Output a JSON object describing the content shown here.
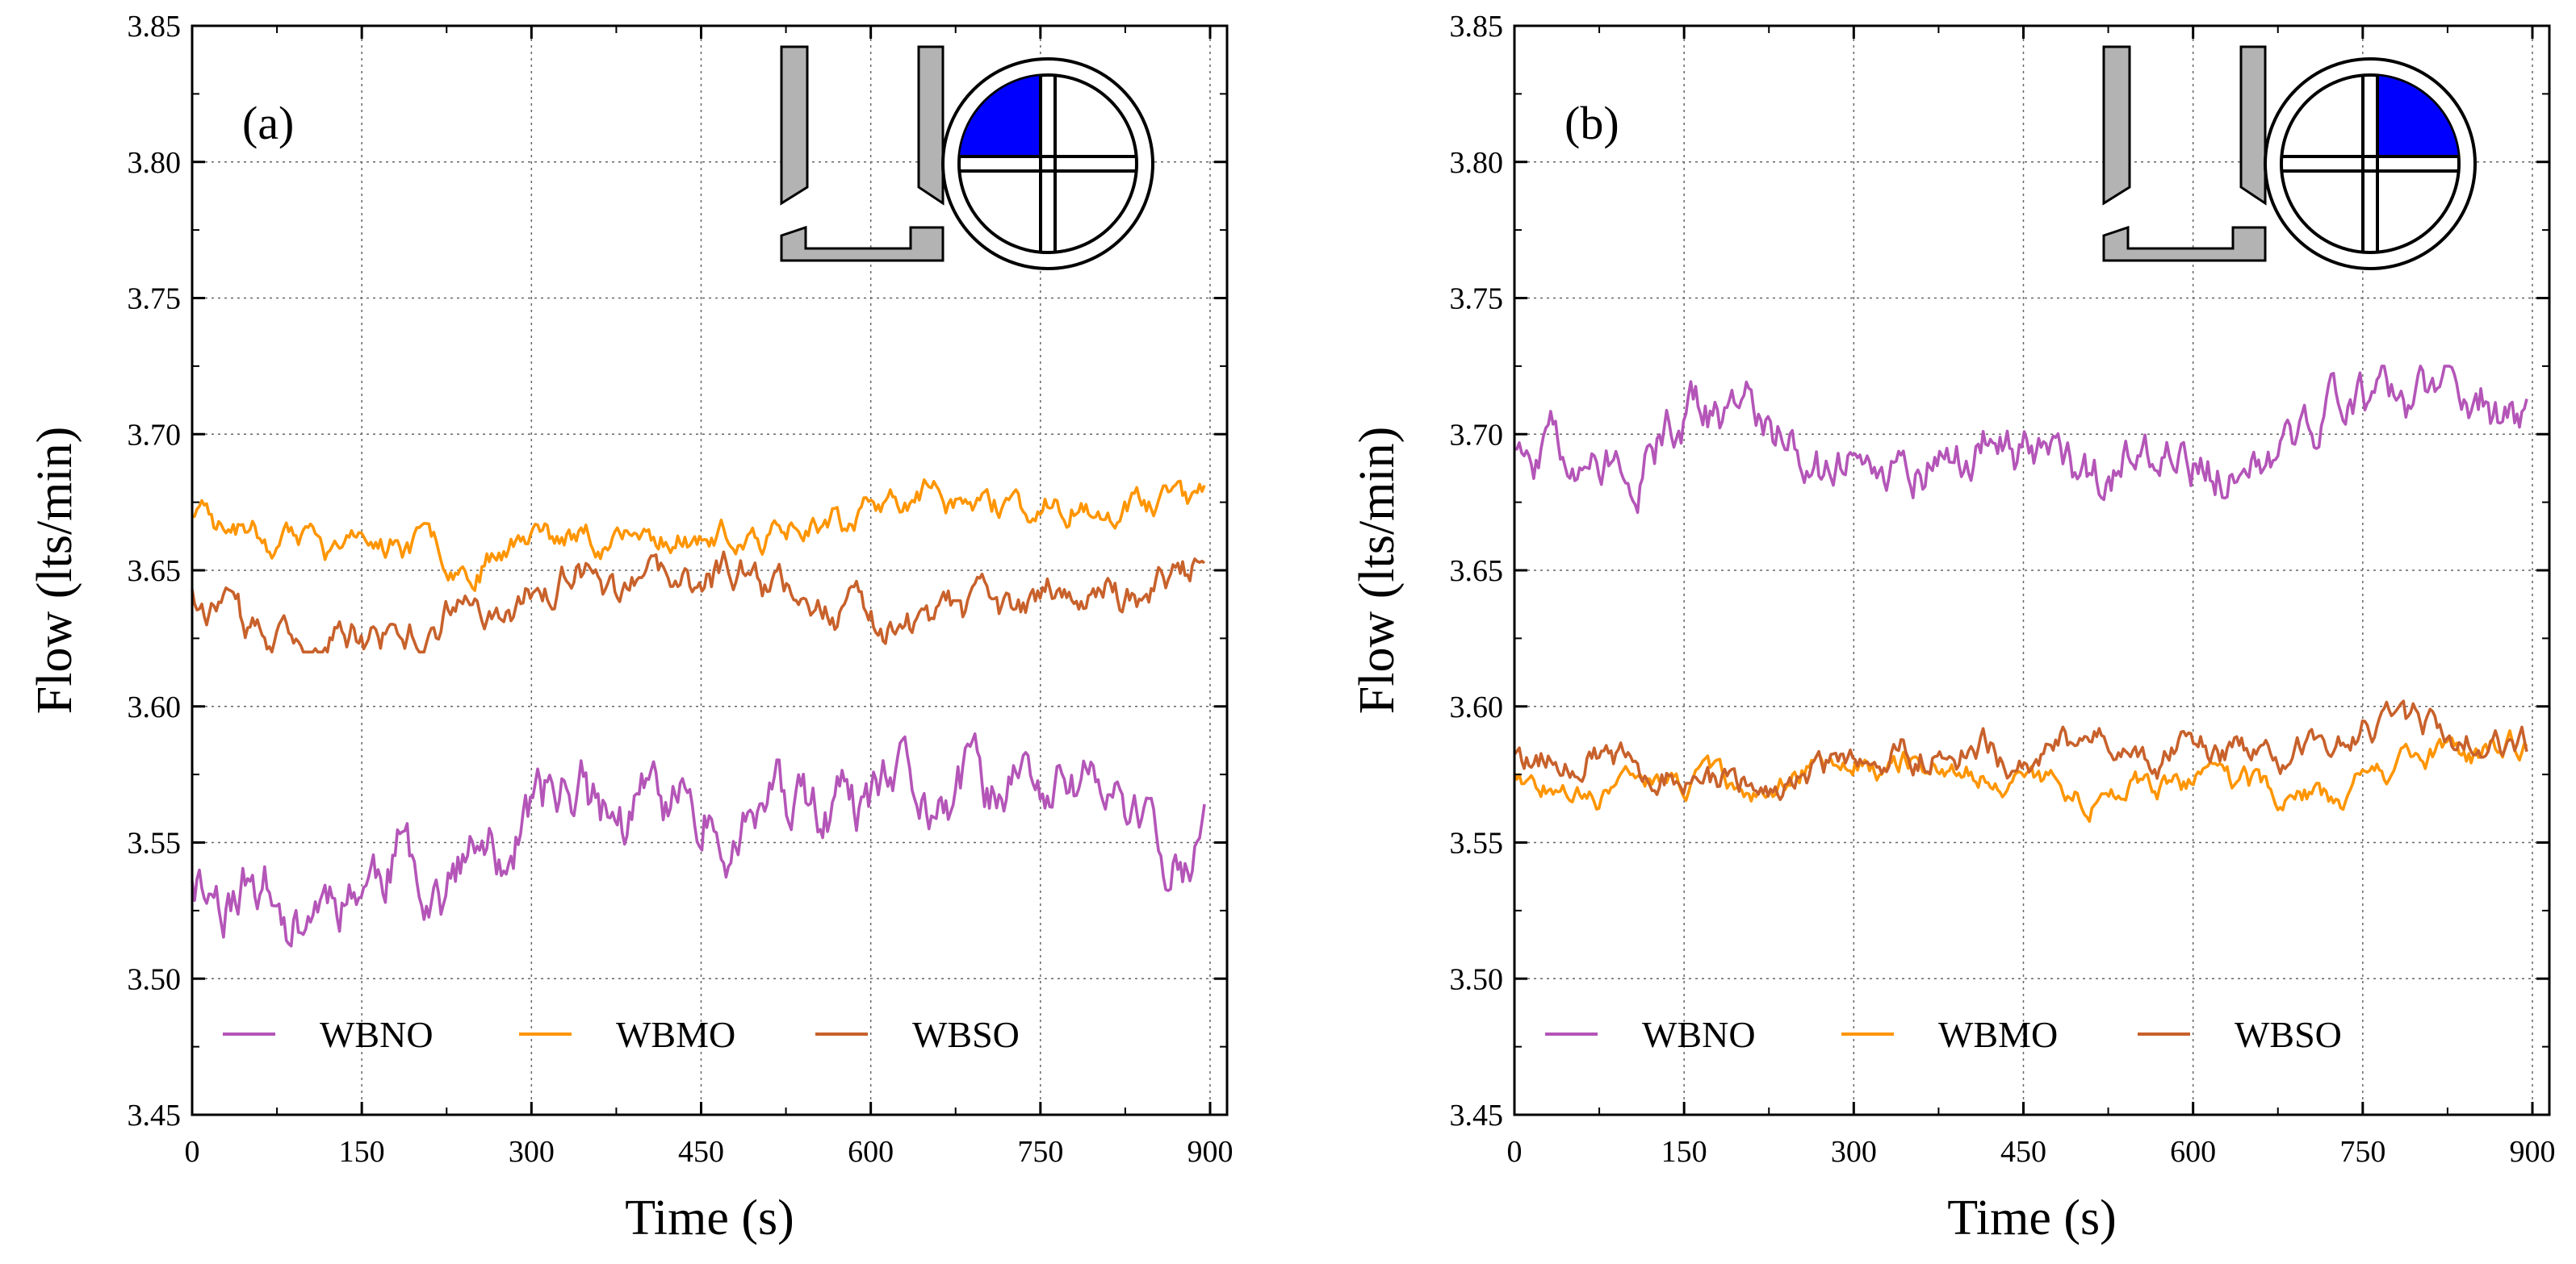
{
  "chart_data": [
    {
      "type": "line",
      "panel_label": "(a)",
      "xlabel": "Time (s)",
      "ylabel": "Flow (lts/min)",
      "xlim": [
        0,
        915
      ],
      "ylim": [
        3.45,
        3.85
      ],
      "x_ticks": [
        "0",
        "150",
        "300",
        "450",
        "600",
        "750",
        "900"
      ],
      "y_ticks": [
        "3.45",
        "3.50",
        "3.55",
        "3.60",
        "3.65",
        "3.70",
        "3.75",
        "3.80",
        "3.85"
      ],
      "grid": true,
      "legend_position": "bottom",
      "inset": {
        "highlighted_quadrant": "top-left",
        "highlight_color": "#0000ff"
      },
      "series": [
        {
          "name": "WBNO",
          "color": "#b455b8",
          "mean": 3.555,
          "amplitude": 0.018,
          "min": 3.512,
          "max": 3.591,
          "seed": 11
        },
        {
          "name": "WBMO",
          "color": "#ff9500",
          "mean": 3.666,
          "amplitude": 0.008,
          "min": 3.642,
          "max": 3.691,
          "seed": 23
        },
        {
          "name": "WBSO",
          "color": "#c8612b",
          "mean": 3.638,
          "amplitude": 0.009,
          "min": 3.62,
          "max": 3.66,
          "seed": 37
        }
      ]
    },
    {
      "type": "line",
      "panel_label": "(b)",
      "xlabel": "Time (s)",
      "ylabel": "Flow (lts/min)",
      "xlim": [
        0,
        915
      ],
      "ylim": [
        3.45,
        3.85
      ],
      "x_ticks": [
        "0",
        "150",
        "300",
        "450",
        "600",
        "750",
        "900"
      ],
      "y_ticks": [
        "3.45",
        "3.50",
        "3.55",
        "3.60",
        "3.65",
        "3.70",
        "3.75",
        "3.80",
        "3.85"
      ],
      "grid": true,
      "legend_position": "bottom",
      "inset": {
        "highlighted_quadrant": "top-right",
        "highlight_color": "#0000ff"
      },
      "series": [
        {
          "name": "WBNO",
          "color": "#b455b8",
          "mean": 3.697,
          "amplitude": 0.012,
          "min": 3.667,
          "max": 3.725,
          "seed": 51
        },
        {
          "name": "WBMO",
          "color": "#ff9500",
          "mean": 3.574,
          "amplitude": 0.006,
          "min": 3.557,
          "max": 3.594,
          "seed": 67
        },
        {
          "name": "WBSO",
          "color": "#c8612b",
          "mean": 3.582,
          "amplitude": 0.007,
          "min": 3.555,
          "max": 3.602,
          "seed": 79
        }
      ]
    }
  ]
}
